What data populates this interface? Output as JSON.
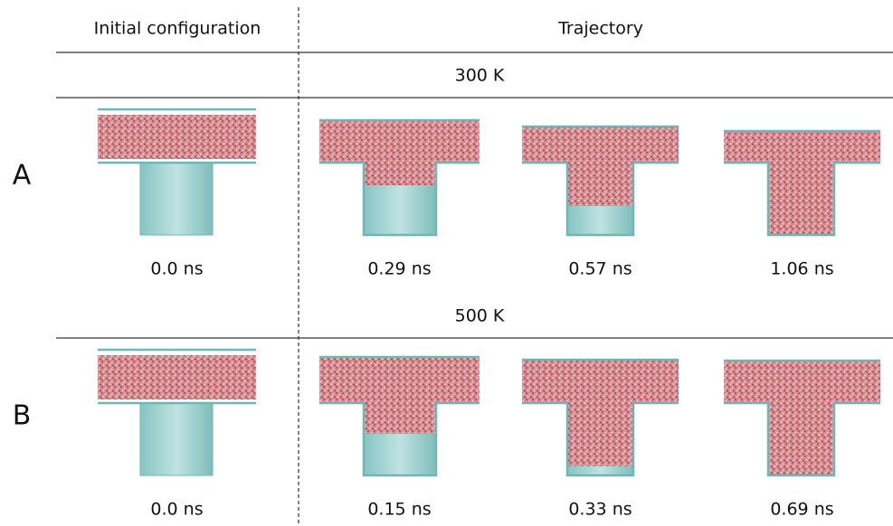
{
  "header": {
    "initial": "Initial configuration",
    "trajectory": "Trajectory"
  },
  "rows": [
    {
      "label": "A",
      "temperature": "300 K",
      "times": [
        "0.0 ns",
        "0.29 ns",
        "0.57 ns",
        "1.06 ns"
      ]
    },
    {
      "label": "B",
      "temperature": "500 K",
      "times": [
        "0.0 ns",
        "0.15 ns",
        "0.33 ns",
        "0.69 ns"
      ]
    }
  ]
}
